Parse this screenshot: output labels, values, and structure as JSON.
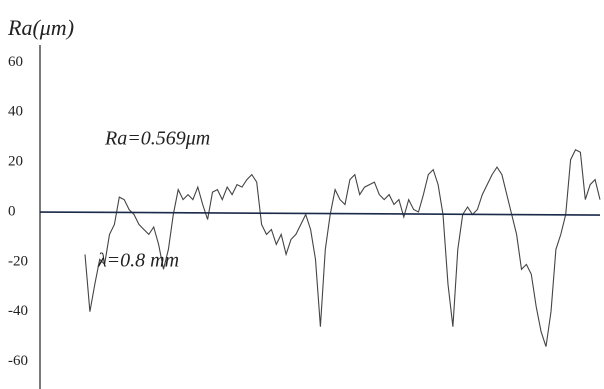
{
  "chart_data": {
    "type": "line",
    "title": "Ra(μm)",
    "annotations": [
      "Ra=0.569μm",
      "λ=0.8 mm"
    ],
    "series": [
      {
        "color": "#444444",
        "values": [
          -17,
          -40,
          -29,
          -19,
          -21,
          -9,
          -5,
          6,
          5,
          1,
          -1,
          -5,
          -7,
          -9,
          -6,
          -13,
          -23,
          -15,
          -1,
          9,
          5,
          7,
          5,
          10,
          3,
          -3,
          8,
          9,
          5,
          10,
          7,
          11,
          10,
          13,
          15,
          12,
          -5,
          -9,
          -7,
          -13,
          -9,
          -17,
          -11,
          -9,
          -5,
          -1,
          -7,
          -19,
          -46,
          -15,
          -1,
          9,
          5,
          3,
          13,
          15,
          7,
          10,
          11,
          12,
          7,
          5,
          7,
          3,
          5,
          -2,
          5,
          1,
          0,
          7,
          15,
          17,
          11,
          -1,
          -29,
          -46,
          -15,
          -1,
          2,
          -1,
          1,
          7,
          11,
          15,
          18,
          15,
          7,
          -1,
          -9,
          -23,
          -21,
          -25,
          -38,
          -48,
          -54,
          -40,
          -15,
          -9,
          -1,
          21,
          25,
          24,
          5,
          11,
          13,
          5
        ]
      }
    ],
    "ylim": [
      -71,
      67
    ],
    "yticks": [
      60,
      40,
      20,
      0,
      -20,
      -40,
      -60
    ],
    "grid": false
  }
}
